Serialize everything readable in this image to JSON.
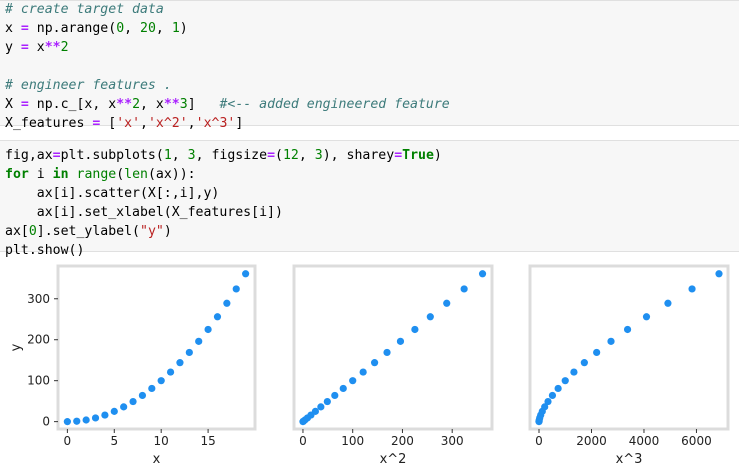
{
  "code_cells": [
    {
      "lines": [
        [
          {
            "t": "# create target data",
            "c": "cm"
          }
        ],
        [
          {
            "t": "x ",
            "c": ""
          },
          {
            "t": "=",
            "c": "op"
          },
          {
            "t": " np.arange(",
            "c": ""
          },
          {
            "t": "0",
            "c": "num"
          },
          {
            "t": ", ",
            "c": ""
          },
          {
            "t": "20",
            "c": "num"
          },
          {
            "t": ", ",
            "c": ""
          },
          {
            "t": "1",
            "c": "num"
          },
          {
            "t": ")",
            "c": ""
          }
        ],
        [
          {
            "t": "y ",
            "c": ""
          },
          {
            "t": "=",
            "c": "op"
          },
          {
            "t": " x",
            "c": ""
          },
          {
            "t": "**",
            "c": "op"
          },
          {
            "t": "2",
            "c": "num"
          }
        ],
        [],
        [
          {
            "t": "# engineer features .",
            "c": "cm"
          }
        ],
        [
          {
            "t": "X ",
            "c": ""
          },
          {
            "t": "=",
            "c": "op"
          },
          {
            "t": " np.c_[x, x",
            "c": ""
          },
          {
            "t": "**",
            "c": "op"
          },
          {
            "t": "2",
            "c": "num"
          },
          {
            "t": ", x",
            "c": ""
          },
          {
            "t": "**",
            "c": "op"
          },
          {
            "t": "3",
            "c": "num"
          },
          {
            "t": "]   ",
            "c": ""
          },
          {
            "t": "#<-- added engineered feature",
            "c": "cm"
          }
        ],
        [
          {
            "t": "X_features ",
            "c": ""
          },
          {
            "t": "=",
            "c": "op"
          },
          {
            "t": " [",
            "c": ""
          },
          {
            "t": "'x'",
            "c": "str"
          },
          {
            "t": ",",
            "c": ""
          },
          {
            "t": "'x^2'",
            "c": "str"
          },
          {
            "t": ",",
            "c": ""
          },
          {
            "t": "'x^3'",
            "c": "str"
          },
          {
            "t": "]",
            "c": ""
          }
        ]
      ]
    },
    {
      "lines": [
        [
          {
            "t": "fig,ax",
            "c": ""
          },
          {
            "t": "=",
            "c": "op"
          },
          {
            "t": "plt.subplots(",
            "c": ""
          },
          {
            "t": "1",
            "c": "num"
          },
          {
            "t": ", ",
            "c": ""
          },
          {
            "t": "3",
            "c": "num"
          },
          {
            "t": ", figsize",
            "c": ""
          },
          {
            "t": "=",
            "c": "op"
          },
          {
            "t": "(",
            "c": ""
          },
          {
            "t": "12",
            "c": "num"
          },
          {
            "t": ", ",
            "c": ""
          },
          {
            "t": "3",
            "c": "num"
          },
          {
            "t": "), sharey",
            "c": ""
          },
          {
            "t": "=",
            "c": "op"
          },
          {
            "t": "True",
            "c": "kw"
          },
          {
            "t": ")",
            "c": ""
          }
        ],
        [
          {
            "t": "for",
            "c": "kw"
          },
          {
            "t": " i ",
            "c": ""
          },
          {
            "t": "in",
            "c": "kw"
          },
          {
            "t": " ",
            "c": ""
          },
          {
            "t": "range",
            "c": "bi"
          },
          {
            "t": "(",
            "c": ""
          },
          {
            "t": "len",
            "c": "bi"
          },
          {
            "t": "(ax)):",
            "c": ""
          }
        ],
        [
          {
            "t": "    ax[i].scatter(X[:,i],y)",
            "c": ""
          }
        ],
        [
          {
            "t": "    ax[i].set_xlabel(X_features[i])",
            "c": ""
          }
        ],
        [
          {
            "t": "ax[",
            "c": ""
          },
          {
            "t": "0",
            "c": "num"
          },
          {
            "t": "].set_ylabel(",
            "c": ""
          },
          {
            "t": "\"y\"",
            "c": "str"
          },
          {
            "t": ")",
            "c": ""
          }
        ],
        [
          {
            "t": "plt.show()",
            "c": ""
          }
        ]
      ]
    }
  ],
  "chart_data": [
    {
      "type": "scatter",
      "x": [
        0,
        1,
        2,
        3,
        4,
        5,
        6,
        7,
        8,
        9,
        10,
        11,
        12,
        13,
        14,
        15,
        16,
        17,
        18,
        19
      ],
      "y": [
        0,
        1,
        4,
        9,
        16,
        25,
        36,
        49,
        64,
        81,
        100,
        121,
        144,
        169,
        196,
        225,
        256,
        289,
        324,
        361
      ],
      "xlabel": "x",
      "ylabel": "y",
      "xticks": [
        0,
        5,
        10,
        15
      ],
      "yticks": [
        0,
        100,
        200,
        300
      ],
      "xlim": [
        -1,
        20
      ],
      "ylim": [
        -18,
        380
      ],
      "color": "#1f8ff0"
    },
    {
      "type": "scatter",
      "x": [
        0,
        1,
        4,
        9,
        16,
        25,
        36,
        49,
        64,
        81,
        100,
        121,
        144,
        169,
        196,
        225,
        256,
        289,
        324,
        361
      ],
      "y": [
        0,
        1,
        4,
        9,
        16,
        25,
        36,
        49,
        64,
        81,
        100,
        121,
        144,
        169,
        196,
        225,
        256,
        289,
        324,
        361
      ],
      "xlabel": "x^2",
      "ylabel": "",
      "xticks": [
        0,
        100,
        200,
        300
      ],
      "yticks": [],
      "xlim": [
        -18,
        380
      ],
      "ylim": [
        -18,
        380
      ],
      "color": "#1f8ff0"
    },
    {
      "type": "scatter",
      "x": [
        0,
        1,
        8,
        27,
        64,
        125,
        216,
        343,
        512,
        729,
        1000,
        1331,
        1728,
        2197,
        2744,
        3375,
        4096,
        4913,
        5832,
        6859
      ],
      "y": [
        0,
        1,
        4,
        9,
        16,
        25,
        36,
        49,
        64,
        81,
        100,
        121,
        144,
        169,
        196,
        225,
        256,
        289,
        324,
        361
      ],
      "xlabel": "x^3",
      "ylabel": "",
      "xticks": [
        0,
        2000,
        4000,
        6000
      ],
      "yticks": [],
      "xlim": [
        -343,
        7202
      ],
      "ylim": [
        -18,
        380
      ],
      "color": "#1f8ff0"
    }
  ]
}
